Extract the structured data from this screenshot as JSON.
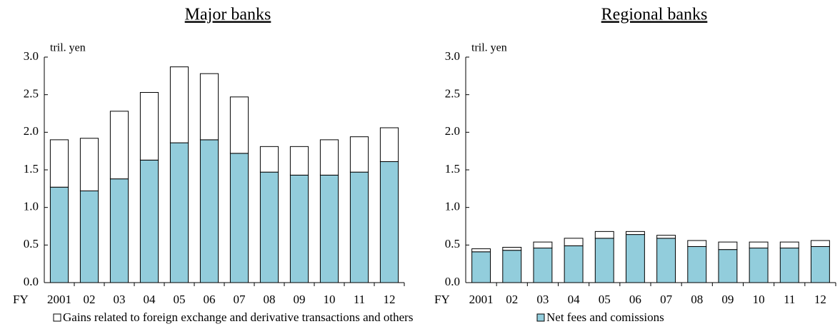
{
  "chart_data": [
    {
      "type": "stacked_bar",
      "title": "Major banks",
      "y_label": "tril. yen",
      "x_label": "FY",
      "categories": [
        "2001",
        "02",
        "03",
        "04",
        "05",
        "06",
        "07",
        "08",
        "09",
        "10",
        "11",
        "12"
      ],
      "series": [
        {
          "name": "Net fees and comissions",
          "color": "#92cddc",
          "values": [
            1.27,
            1.22,
            1.38,
            1.63,
            1.86,
            1.9,
            1.72,
            1.47,
            1.43,
            1.43,
            1.47,
            1.61
          ]
        },
        {
          "name": "Gains related to foreign exchange and derivative transactions and others",
          "color": "#ffffff",
          "values": [
            0.63,
            0.7,
            0.9,
            0.9,
            1.01,
            0.88,
            0.75,
            0.34,
            0.38,
            0.47,
            0.47,
            0.45
          ]
        }
      ],
      "ylim": [
        0,
        3
      ],
      "yticks": [
        {
          "value": 0,
          "label": "0.0"
        },
        {
          "value": 0.5,
          "label": "0.5"
        },
        {
          "value": 1,
          "label": "1.0"
        },
        {
          "value": 1.5,
          "label": "1.5"
        },
        {
          "value": 2,
          "label": "2.0"
        },
        {
          "value": 2.5,
          "label": "2.5"
        },
        {
          "value": 3,
          "label": "3.0"
        }
      ],
      "grid": false
    },
    {
      "type": "stacked_bar",
      "title": "Regional banks",
      "y_label": "tril. yen",
      "x_label": "FY",
      "categories": [
        "2001",
        "02",
        "03",
        "04",
        "05",
        "06",
        "07",
        "08",
        "09",
        "10",
        "11",
        "12"
      ],
      "series": [
        {
          "color": "#92cddc",
          "values": [
            0.41,
            0.43,
            0.46,
            0.49,
            0.59,
            0.64,
            0.59,
            0.48,
            0.44,
            0.46,
            0.46,
            0.48
          ]
        },
        {
          "color": "#ffffff",
          "values": [
            0.04,
            0.04,
            0.08,
            0.1,
            0.09,
            0.04,
            0.04,
            0.08,
            0.1,
            0.08,
            0.08,
            0.08
          ]
        }
      ],
      "ylim": [
        0,
        3
      ],
      "yticks": [
        {
          "value": 0,
          "label": "0.0"
        },
        {
          "value": 0.5,
          "label": "0.5"
        },
        {
          "value": 1,
          "label": "1.0"
        },
        {
          "value": 1.5,
          "label": "1.5"
        },
        {
          "value": 2,
          "label": "2.0"
        },
        {
          "value": 2.5,
          "label": "2.5"
        },
        {
          "value": 3,
          "label": "3.0"
        }
      ],
      "grid": false
    }
  ]
}
